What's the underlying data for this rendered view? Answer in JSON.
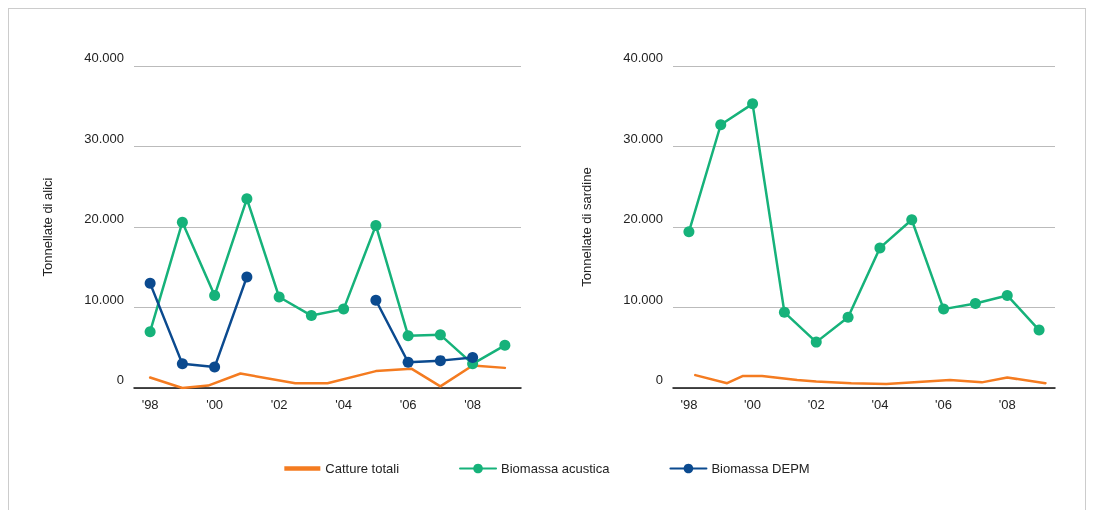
{
  "chart_data": [
    {
      "type": "line",
      "ylabel": "Tonnellate di alici",
      "xlim": [
        1997.5,
        2009.5
      ],
      "xticks": [
        {
          "value": 1998,
          "label": "'98"
        },
        {
          "value": 2000,
          "label": "'00"
        },
        {
          "value": 2002,
          "label": "'02"
        },
        {
          "value": 2004,
          "label": "'04"
        },
        {
          "value": 2006,
          "label": "'06"
        },
        {
          "value": 2008,
          "label": "'08"
        }
      ],
      "ylim": [
        0,
        40000
      ],
      "yticks": [
        0,
        {
          "value": 10000,
          "label": "10.000"
        },
        {
          "value": 20000,
          "label": "20.000"
        },
        {
          "value": 30000,
          "label": "30.000"
        },
        {
          "value": 40000,
          "label": "40.000"
        }
      ],
      "grid": "y",
      "legend": "bottom",
      "series": [
        {
          "name": "Catture totali",
          "color": "#f47b20",
          "marker": "none",
          "x": [
            1998,
            1999,
            1999.8,
            2000.8,
            2002.5,
            2003.5,
            2005,
            2006.1,
            2007,
            2008,
            2009
          ],
          "values": [
            1300,
            0,
            300,
            1800,
            600,
            600,
            2100,
            2400,
            200,
            2800,
            2500
          ]
        },
        {
          "name": "Biomassa acustica",
          "color": "#16b27a",
          "marker": "circle",
          "x": [
            1998,
            1999,
            2000,
            2001,
            2002,
            2003,
            2004,
            2005,
            2006,
            2007,
            2008,
            2009
          ],
          "values": [
            7000,
            20600,
            11500,
            23500,
            11300,
            9000,
            9800,
            20200,
            6500,
            6600,
            3000,
            5300
          ]
        },
        {
          "name": "Biomassa DEPM",
          "color": "#0b4a8f",
          "marker": "circle",
          "x": [
            1998,
            1999,
            2000,
            2001,
            2002,
            2003,
            2004,
            2005,
            2006,
            2007,
            2008
          ],
          "values": [
            13000,
            3000,
            2600,
            13800,
            null,
            null,
            null,
            10900,
            3200,
            3400,
            3800
          ]
        }
      ]
    },
    {
      "type": "line",
      "ylabel": "Tonnellate di sardine",
      "xlim": [
        1997.5,
        2009.5
      ],
      "xticks": [
        {
          "value": 1998,
          "label": "'98"
        },
        {
          "value": 2000,
          "label": "'00"
        },
        {
          "value": 2002,
          "label": "'02"
        },
        {
          "value": 2004,
          "label": "'04"
        },
        {
          "value": 2006,
          "label": "'06"
        },
        {
          "value": 2008,
          "label": "'08"
        }
      ],
      "ylim": [
        0,
        40000
      ],
      "yticks": [
        0,
        {
          "value": 10000,
          "label": "10.000"
        },
        {
          "value": 20000,
          "label": "20.000"
        },
        {
          "value": 30000,
          "label": "30.000"
        },
        {
          "value": 40000,
          "label": "40.000"
        }
      ],
      "grid": "y",
      "series": [
        {
          "color": "#f47b20",
          "marker": "none",
          "x": [
            1998.2,
            1999.2,
            1999.7,
            2000.3,
            2001.4,
            2002,
            2003.1,
            2004.2,
            2006.2,
            2007.2,
            2008,
            2009.2
          ],
          "values": [
            1600,
            600,
            1500,
            1500,
            1000,
            800,
            600,
            500,
            1000,
            700,
            1300,
            600
          ]
        },
        {
          "color": "#16b27a",
          "marker": "circle",
          "x": [
            1998,
            1999,
            2000,
            2001,
            2002,
            2003,
            2004,
            2005,
            2006,
            2007,
            2008,
            2009
          ],
          "values": [
            19400,
            32700,
            35300,
            9400,
            5700,
            8800,
            17400,
            20900,
            9800,
            10500,
            11500,
            7200
          ]
        }
      ]
    }
  ]
}
